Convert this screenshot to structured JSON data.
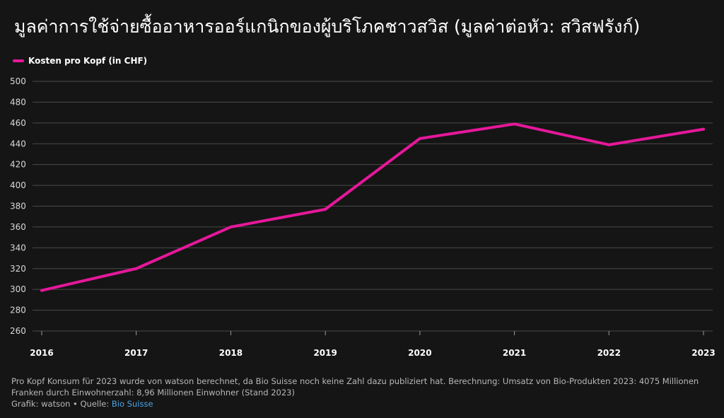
{
  "title": "มูลค่าการใช้จ่ายซื้ออาหารออร์แกนิกของผู้บริโภคชาวสวิส (มูลค่าต่อหัว: สวิสฟรังก์)",
  "legend": {
    "label": "Kosten pro Kopf (in CHF)"
  },
  "colors": {
    "line": "#e5189a",
    "background": "#151515",
    "grid": "#4a4a4a",
    "link": "#4aa3e0"
  },
  "chart_data": {
    "type": "line",
    "title": "มูลค่าการใช้จ่ายซื้ออาหารออร์แกนิกของผู้บริโภคชาวสวิส (มูลค่าต่อหัว: สวิสฟรังก์)",
    "xlabel": "",
    "ylabel": "",
    "categories": [
      "2016",
      "2017",
      "2018",
      "2019",
      "2020",
      "2021",
      "2022",
      "2023"
    ],
    "series": [
      {
        "name": "Kosten pro Kopf (in CHF)",
        "values": [
          299,
          320,
          360,
          377,
          445,
          459,
          439,
          454
        ]
      }
    ],
    "ylim": [
      260,
      500
    ],
    "yticks": [
      260,
      280,
      300,
      320,
      340,
      360,
      380,
      400,
      420,
      440,
      460,
      480,
      500
    ],
    "grid": true,
    "legend_position": "top-left"
  },
  "footer": {
    "note": "Pro Kopf Konsum für 2023 wurde von watson berechnet, da Bio Suisse noch keine Zahl dazu publiziert hat. Berechnung: Umsatz von Bio-Produkten 2023: 4075 Millionen Franken durch Einwohnerzahl: 8,96 Millionen Einwohner (Stand 2023)",
    "credit_prefix": "Grafik: watson • Quelle: ",
    "source_link": "Bio Suisse"
  }
}
